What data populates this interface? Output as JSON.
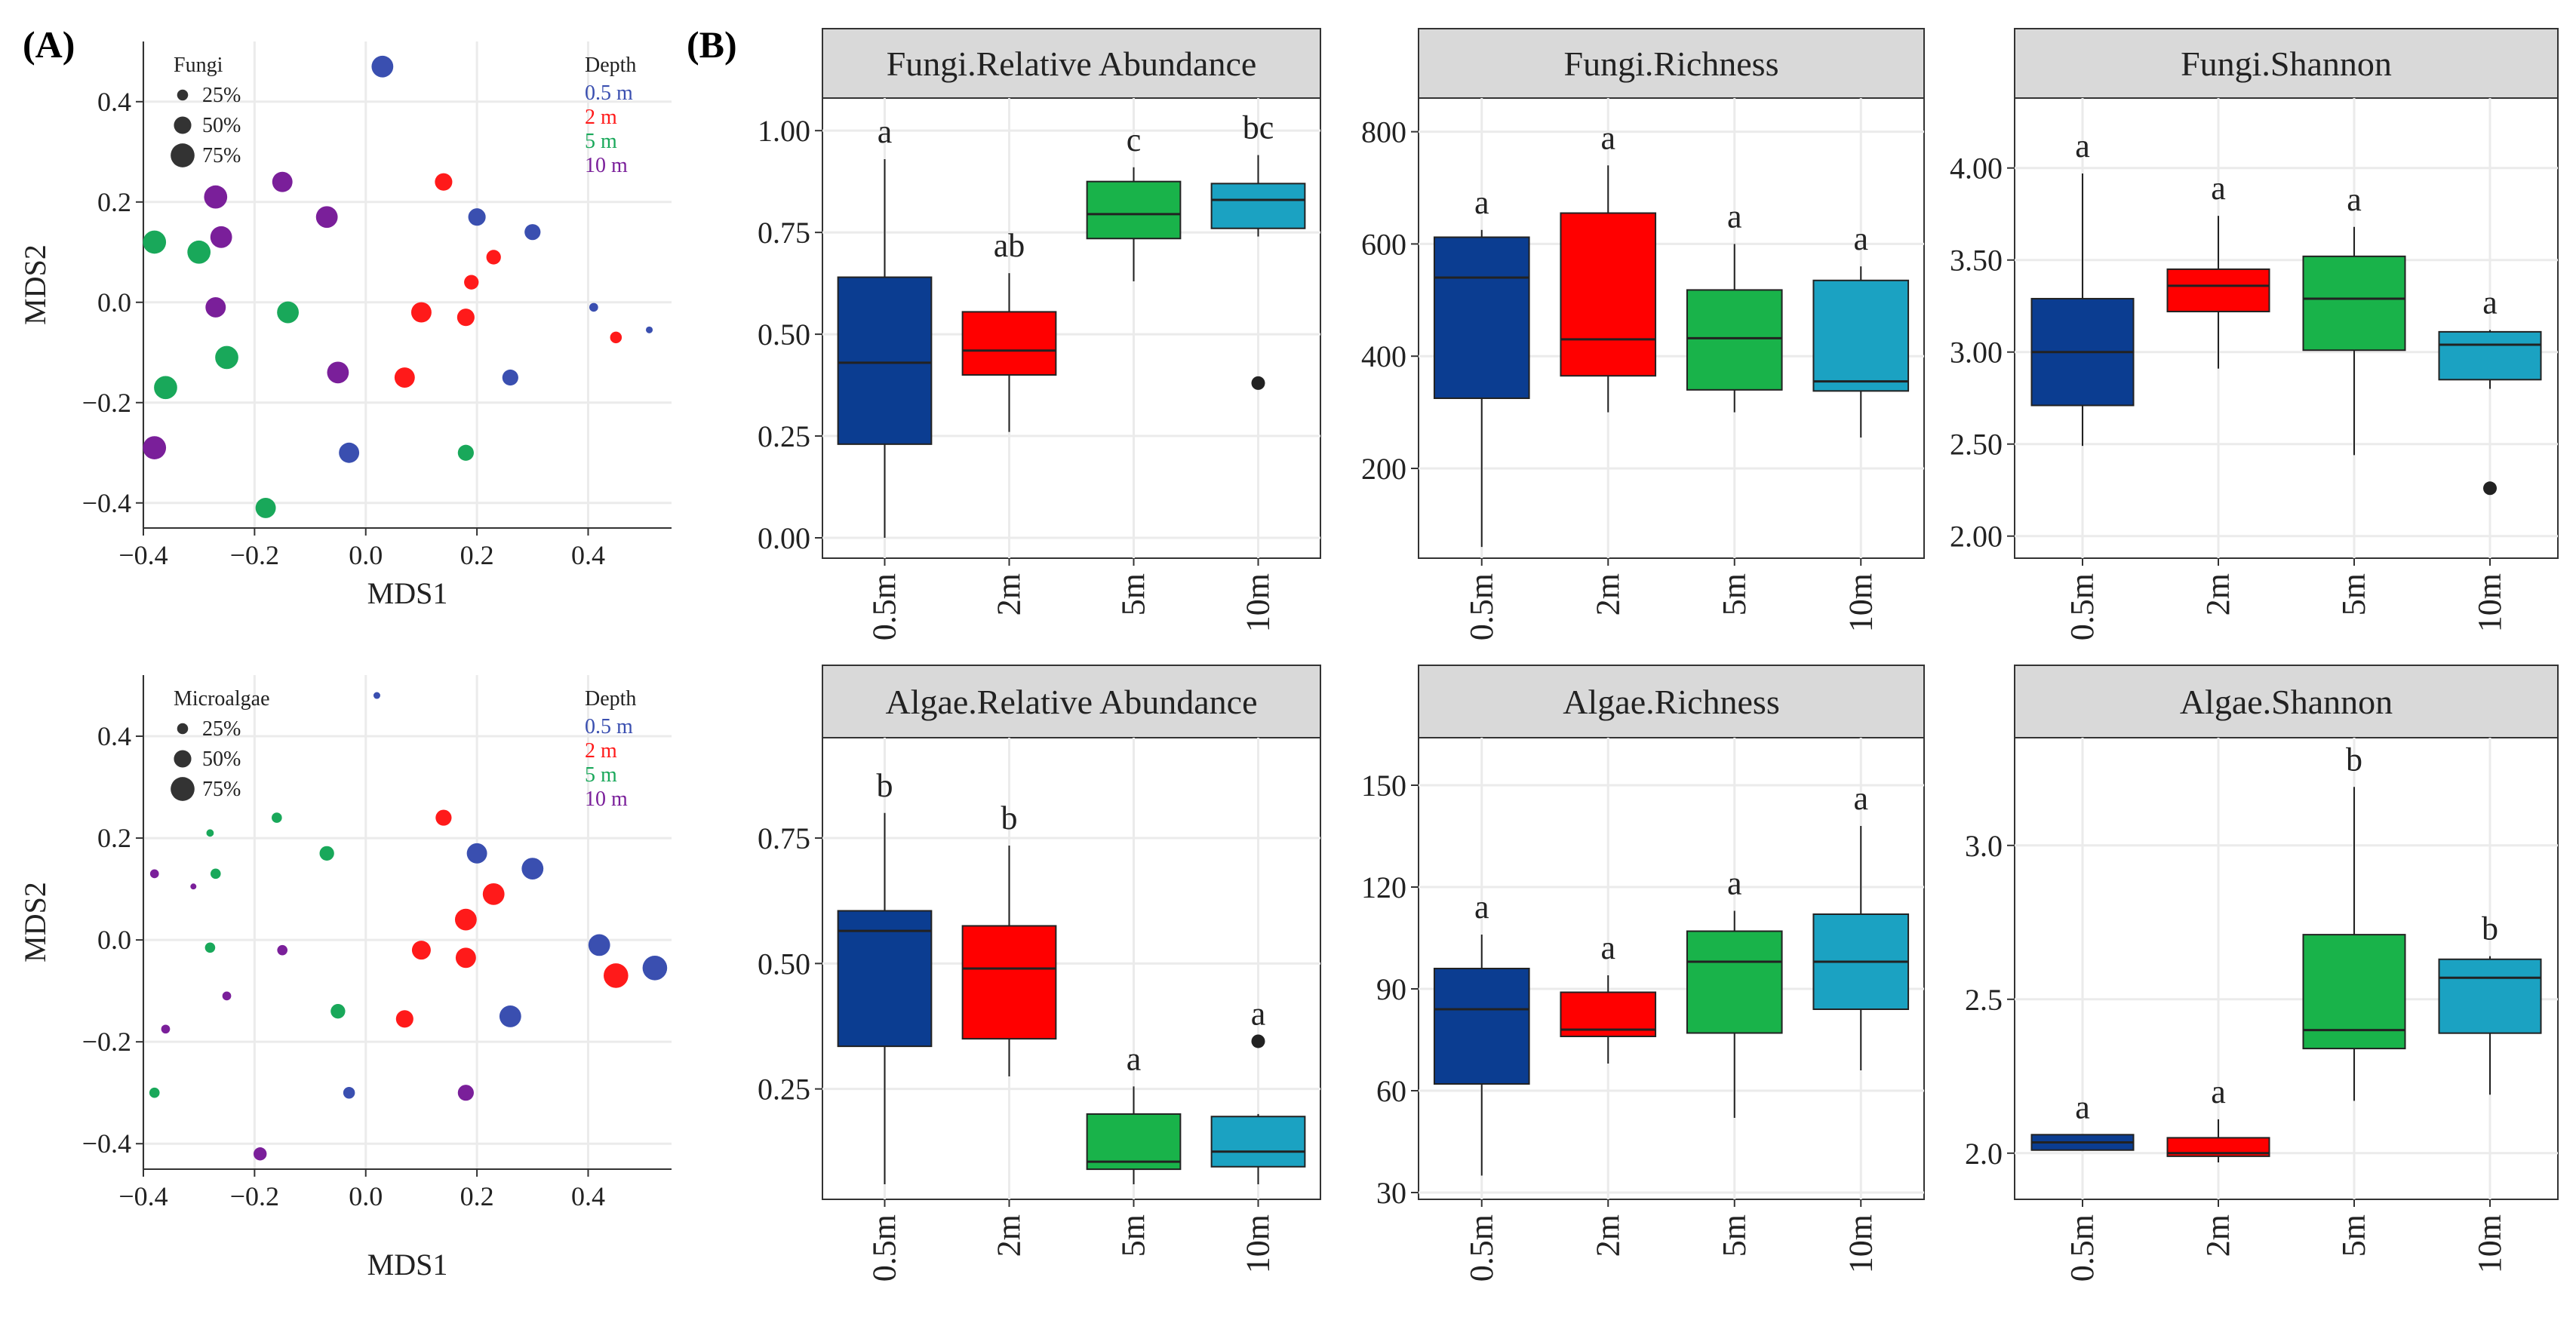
{
  "figure": {
    "panel_a_label": "(A)",
    "panel_b_label": "(B)"
  },
  "colors": {
    "d0_5": "#0b3d91",
    "d2": "#ff0000",
    "d5": "#19b34a",
    "d10": "#1ba2c2",
    "nmds_blue": "#3a4fb0",
    "nmds_red": "#ff1a1a",
    "nmds_green": "#19a85a",
    "nmds_purple": "#7a1f9a",
    "strip": "#d9d9d9",
    "grid": "#ebebeb"
  },
  "chart_data": [
    {
      "id": "nmds_fungi",
      "type": "scatter",
      "xlabel": "MDS1",
      "ylabel": "MDS2",
      "xlim": [
        -0.4,
        0.55
      ],
      "ylim": [
        -0.45,
        0.52
      ],
      "xticks": [
        -0.4,
        -0.2,
        0.0,
        0.2,
        0.4
      ],
      "xtick_labels": [
        "−0.4",
        "−0.2",
        "0.0",
        "0.2",
        "0.4"
      ],
      "yticks": [
        -0.4,
        -0.2,
        0.0,
        0.2,
        0.4
      ],
      "ytick_labels": [
        "−0.4",
        "−0.2",
        "0.0",
        "0.2",
        "0.4"
      ],
      "size_legend_title": "Fungi",
      "size_legend": [
        {
          "label": "25%",
          "value": 25
        },
        {
          "label": "50%",
          "value": 50
        },
        {
          "label": "75%",
          "value": 75
        }
      ],
      "color_legend_title": "Depth",
      "color_legend": [
        {
          "label": "0.5 m",
          "key": "nmds_blue"
        },
        {
          "label": "2 m",
          "key": "nmds_red"
        },
        {
          "label": "5 m",
          "key": "nmds_green"
        },
        {
          "label": "10 m",
          "key": "nmds_purple"
        }
      ],
      "points": [
        {
          "x": 0.03,
          "y": 0.47,
          "g": "nmds_blue",
          "s": 60
        },
        {
          "x": 0.2,
          "y": 0.17,
          "g": "nmds_blue",
          "s": 45
        },
        {
          "x": 0.3,
          "y": 0.14,
          "g": "nmds_blue",
          "s": 40
        },
        {
          "x": 0.41,
          "y": -0.01,
          "g": "nmds_blue",
          "s": 15
        },
        {
          "x": 0.51,
          "y": -0.055,
          "g": "nmds_blue",
          "s": 8
        },
        {
          "x": 0.26,
          "y": -0.15,
          "g": "nmds_blue",
          "s": 40
        },
        {
          "x": -0.03,
          "y": -0.3,
          "g": "nmds_blue",
          "s": 55
        },
        {
          "x": 0.14,
          "y": 0.24,
          "g": "nmds_red",
          "s": 45
        },
        {
          "x": 0.23,
          "y": 0.09,
          "g": "nmds_red",
          "s": 35
        },
        {
          "x": 0.19,
          "y": 0.04,
          "g": "nmds_red",
          "s": 35
        },
        {
          "x": 0.1,
          "y": -0.02,
          "g": "nmds_red",
          "s": 55
        },
        {
          "x": 0.18,
          "y": -0.03,
          "g": "nmds_red",
          "s": 45
        },
        {
          "x": 0.45,
          "y": -0.07,
          "g": "nmds_red",
          "s": 25
        },
        {
          "x": 0.07,
          "y": -0.15,
          "g": "nmds_red",
          "s": 55
        },
        {
          "x": -0.38,
          "y": 0.12,
          "g": "nmds_green",
          "s": 65
        },
        {
          "x": -0.3,
          "y": 0.1,
          "g": "nmds_green",
          "s": 65
        },
        {
          "x": -0.14,
          "y": -0.02,
          "g": "nmds_green",
          "s": 60
        },
        {
          "x": -0.25,
          "y": -0.11,
          "g": "nmds_green",
          "s": 65
        },
        {
          "x": -0.36,
          "y": -0.17,
          "g": "nmds_green",
          "s": 65
        },
        {
          "x": 0.18,
          "y": -0.3,
          "g": "nmds_green",
          "s": 40
        },
        {
          "x": -0.18,
          "y": -0.41,
          "g": "nmds_green",
          "s": 55
        },
        {
          "x": -0.15,
          "y": 0.24,
          "g": "nmds_purple",
          "s": 55
        },
        {
          "x": -0.27,
          "y": 0.21,
          "g": "nmds_purple",
          "s": 65
        },
        {
          "x": -0.07,
          "y": 0.17,
          "g": "nmds_purple",
          "s": 60
        },
        {
          "x": -0.26,
          "y": 0.13,
          "g": "nmds_purple",
          "s": 60
        },
        {
          "x": -0.27,
          "y": -0.01,
          "g": "nmds_purple",
          "s": 55
        },
        {
          "x": -0.05,
          "y": -0.14,
          "g": "nmds_purple",
          "s": 60
        },
        {
          "x": -0.38,
          "y": -0.29,
          "g": "nmds_purple",
          "s": 65
        }
      ]
    },
    {
      "id": "nmds_algae",
      "type": "scatter",
      "xlabel": "MDS1",
      "ylabel": "MDS2",
      "xlim": [
        -0.4,
        0.55
      ],
      "ylim": [
        -0.45,
        0.52
      ],
      "xticks": [
        -0.4,
        -0.2,
        0.0,
        0.2,
        0.4
      ],
      "xtick_labels": [
        "−0.4",
        "−0.2",
        "0.0",
        "0.2",
        "0.4"
      ],
      "yticks": [
        -0.4,
        -0.2,
        0.0,
        0.2,
        0.4
      ],
      "ytick_labels": [
        "−0.4",
        "−0.2",
        "0.0",
        "0.2",
        "0.4"
      ],
      "size_legend_title": "Microalgae",
      "size_legend": [
        {
          "label": "25%",
          "value": 25
        },
        {
          "label": "50%",
          "value": 50
        },
        {
          "label": "75%",
          "value": 75
        }
      ],
      "color_legend_title": "Depth",
      "color_legend": [
        {
          "label": "0.5 m",
          "key": "nmds_blue"
        },
        {
          "label": "2 m",
          "key": "nmds_red"
        },
        {
          "label": "5 m",
          "key": "nmds_green"
        },
        {
          "label": "10 m",
          "key": "nmds_purple"
        }
      ],
      "points": [
        {
          "x": 0.02,
          "y": 0.48,
          "g": "nmds_blue",
          "s": 8
        },
        {
          "x": 0.2,
          "y": 0.17,
          "g": "nmds_blue",
          "s": 55
        },
        {
          "x": 0.3,
          "y": 0.14,
          "g": "nmds_blue",
          "s": 60
        },
        {
          "x": 0.42,
          "y": -0.01,
          "g": "nmds_blue",
          "s": 60
        },
        {
          "x": 0.52,
          "y": -0.055,
          "g": "nmds_blue",
          "s": 70
        },
        {
          "x": 0.26,
          "y": -0.15,
          "g": "nmds_blue",
          "s": 60
        },
        {
          "x": -0.03,
          "y": -0.3,
          "g": "nmds_blue",
          "s": 25
        },
        {
          "x": 0.14,
          "y": 0.24,
          "g": "nmds_red",
          "s": 40
        },
        {
          "x": 0.23,
          "y": 0.09,
          "g": "nmds_red",
          "s": 60
        },
        {
          "x": 0.18,
          "y": 0.04,
          "g": "nmds_red",
          "s": 60
        },
        {
          "x": 0.1,
          "y": -0.02,
          "g": "nmds_red",
          "s": 50
        },
        {
          "x": 0.18,
          "y": -0.035,
          "g": "nmds_red",
          "s": 55
        },
        {
          "x": 0.45,
          "y": -0.07,
          "g": "nmds_red",
          "s": 70
        },
        {
          "x": 0.07,
          "y": -0.155,
          "g": "nmds_red",
          "s": 45
        },
        {
          "x": -0.16,
          "y": 0.24,
          "g": "nmds_green",
          "s": 20
        },
        {
          "x": -0.28,
          "y": 0.21,
          "g": "nmds_green",
          "s": 10
        },
        {
          "x": -0.07,
          "y": 0.17,
          "g": "nmds_green",
          "s": 35
        },
        {
          "x": -0.27,
          "y": 0.13,
          "g": "nmds_green",
          "s": 20
        },
        {
          "x": -0.28,
          "y": -0.015,
          "g": "nmds_green",
          "s": 20
        },
        {
          "x": -0.05,
          "y": -0.14,
          "g": "nmds_green",
          "s": 35
        },
        {
          "x": -0.38,
          "y": -0.3,
          "g": "nmds_green",
          "s": 20
        },
        {
          "x": -0.38,
          "y": 0.13,
          "g": "nmds_purple",
          "s": 15
        },
        {
          "x": -0.31,
          "y": 0.105,
          "g": "nmds_purple",
          "s": 5
        },
        {
          "x": -0.15,
          "y": -0.02,
          "g": "nmds_purple",
          "s": 20
        },
        {
          "x": -0.25,
          "y": -0.11,
          "g": "nmds_purple",
          "s": 15
        },
        {
          "x": -0.36,
          "y": -0.175,
          "g": "nmds_purple",
          "s": 15
        },
        {
          "x": 0.18,
          "y": -0.3,
          "g": "nmds_purple",
          "s": 40
        },
        {
          "x": -0.19,
          "y": -0.42,
          "g": "nmds_purple",
          "s": 30
        }
      ]
    },
    {
      "id": "fungi_ra",
      "type": "box",
      "title": "Fungi.Relative Abundance",
      "categories": [
        "0.5m",
        "2m",
        "5m",
        "10m"
      ],
      "ylim": [
        -0.05,
        1.08
      ],
      "yticks": [
        0.0,
        0.25,
        0.5,
        0.75,
        1.0
      ],
      "ytick_labels": [
        "0.00",
        "0.25",
        "0.50",
        "0.75",
        "1.00"
      ],
      "boxes": [
        {
          "min": 0.0,
          "q1": 0.23,
          "median": 0.43,
          "q3": 0.64,
          "max": 0.93,
          "outliers": [],
          "letter": "a"
        },
        {
          "min": 0.26,
          "q1": 0.4,
          "median": 0.46,
          "q3": 0.555,
          "max": 0.65,
          "outliers": [],
          "letter": "ab"
        },
        {
          "min": 0.63,
          "q1": 0.735,
          "median": 0.795,
          "q3": 0.875,
          "max": 0.91,
          "outliers": [],
          "letter": "c"
        },
        {
          "min": 0.74,
          "q1": 0.76,
          "median": 0.83,
          "q3": 0.87,
          "max": 0.94,
          "outliers": [
            0.38
          ],
          "letter": "bc"
        }
      ]
    },
    {
      "id": "fungi_richness",
      "type": "box",
      "title": "Fungi.Richness",
      "categories": [
        "0.5m",
        "2m",
        "5m",
        "10m"
      ],
      "ylim": [
        40,
        860
      ],
      "yticks": [
        200,
        400,
        600,
        800
      ],
      "ytick_labels": [
        "200",
        "400",
        "600",
        "800"
      ],
      "boxes": [
        {
          "min": 60,
          "q1": 325,
          "median": 540,
          "q3": 612,
          "max": 625,
          "outliers": [],
          "letter": "a"
        },
        {
          "min": 300,
          "q1": 365,
          "median": 430,
          "q3": 655,
          "max": 740,
          "outliers": [],
          "letter": "a"
        },
        {
          "min": 300,
          "q1": 340,
          "median": 432,
          "q3": 518,
          "max": 600,
          "outliers": [],
          "letter": "a"
        },
        {
          "min": 255,
          "q1": 338,
          "median": 355,
          "q3": 535,
          "max": 560,
          "outliers": [],
          "letter": "a"
        }
      ]
    },
    {
      "id": "fungi_shannon",
      "type": "box",
      "title": "Fungi.Shannon",
      "categories": [
        "0.5m",
        "2m",
        "5m",
        "10m"
      ],
      "ylim": [
        1.88,
        4.38
      ],
      "yticks": [
        2.0,
        2.5,
        3.0,
        3.5,
        4.0
      ],
      "ytick_labels": [
        "2.00",
        "2.50",
        "3.00",
        "3.50",
        "4.00"
      ],
      "boxes": [
        {
          "min": 2.49,
          "q1": 2.71,
          "median": 3.0,
          "q3": 3.29,
          "max": 3.97,
          "outliers": [],
          "letter": "a"
        },
        {
          "min": 2.91,
          "q1": 3.22,
          "median": 3.36,
          "q3": 3.45,
          "max": 3.74,
          "outliers": [],
          "letter": "a"
        },
        {
          "min": 2.44,
          "q1": 3.01,
          "median": 3.29,
          "q3": 3.52,
          "max": 3.68,
          "outliers": [],
          "letter": "a"
        },
        {
          "min": 2.8,
          "q1": 2.85,
          "median": 3.04,
          "q3": 3.11,
          "max": 3.12,
          "outliers": [
            2.26
          ],
          "letter": "a"
        }
      ]
    },
    {
      "id": "algae_ra",
      "type": "box",
      "title": "Algae.Relative Abundance",
      "categories": [
        "0.5m",
        "2m",
        "5m",
        "10m"
      ],
      "ylim": [
        0.03,
        0.95
      ],
      "yticks": [
        0.25,
        0.5,
        0.75
      ],
      "ytick_labels": [
        "0.25",
        "0.50",
        "0.75"
      ],
      "boxes": [
        {
          "min": 0.06,
          "q1": 0.335,
          "median": 0.565,
          "q3": 0.605,
          "max": 0.8,
          "outliers": [],
          "letter": "b"
        },
        {
          "min": 0.275,
          "q1": 0.35,
          "median": 0.49,
          "q3": 0.575,
          "max": 0.735,
          "outliers": [],
          "letter": "b"
        },
        {
          "min": 0.06,
          "q1": 0.09,
          "median": 0.105,
          "q3": 0.2,
          "max": 0.255,
          "outliers": [],
          "letter": "a"
        },
        {
          "min": 0.06,
          "q1": 0.095,
          "median": 0.125,
          "q3": 0.195,
          "max": 0.2,
          "outliers": [
            0.345
          ],
          "letter": "a"
        }
      ]
    },
    {
      "id": "algae_richness",
      "type": "box",
      "title": "Algae.Richness",
      "categories": [
        "0.5m",
        "2m",
        "5m",
        "10m"
      ],
      "ylim": [
        28,
        164
      ],
      "yticks": [
        30,
        60,
        90,
        120,
        150
      ],
      "ytick_labels": [
        "30",
        "60",
        "90",
        "120",
        "150"
      ],
      "boxes": [
        {
          "min": 35,
          "q1": 62,
          "median": 84,
          "q3": 96,
          "max": 106,
          "outliers": [],
          "letter": "a"
        },
        {
          "min": 68,
          "q1": 76,
          "median": 78,
          "q3": 89,
          "max": 94,
          "outliers": [],
          "letter": "a"
        },
        {
          "min": 52,
          "q1": 77,
          "median": 98,
          "q3": 107,
          "max": 113,
          "outliers": [],
          "letter": "a"
        },
        {
          "min": 66,
          "q1": 84,
          "median": 98,
          "q3": 112,
          "max": 138,
          "outliers": [],
          "letter": "a"
        }
      ]
    },
    {
      "id": "algae_shannon",
      "type": "box",
      "title": "Algae.Shannon",
      "categories": [
        "0.5m",
        "2m",
        "5m",
        "10m"
      ],
      "ylim": [
        1.85,
        3.35
      ],
      "yticks": [
        2.0,
        2.5,
        3.0
      ],
      "ytick_labels": [
        "2.0",
        "2.5",
        "3.0"
      ],
      "boxes": [
        {
          "min": 2.01,
          "q1": 2.01,
          "median": 2.035,
          "q3": 2.06,
          "max": 2.06,
          "outliers": [],
          "letter": "a"
        },
        {
          "min": 1.97,
          "q1": 1.99,
          "median": 2.0,
          "q3": 2.05,
          "max": 2.11,
          "outliers": [],
          "letter": "a"
        },
        {
          "min": 2.17,
          "q1": 2.34,
          "median": 2.4,
          "q3": 2.71,
          "max": 3.19,
          "outliers": [],
          "letter": "b"
        },
        {
          "min": 2.19,
          "q1": 2.39,
          "median": 2.57,
          "q3": 2.63,
          "max": 2.64,
          "outliers": [],
          "letter": "b"
        }
      ]
    }
  ]
}
